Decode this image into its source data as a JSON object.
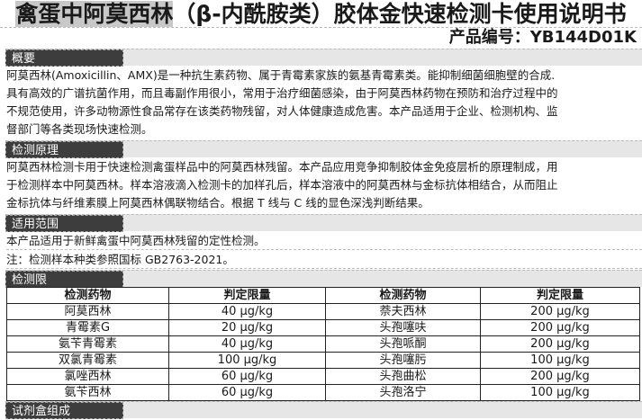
{
  "title": {
    "highlight": "禽蛋中阿莫西林",
    "rest": "（β-内酰胺类）胶体金快速检测卡使用说明书"
  },
  "product_code": "产品编号：YB144D01K",
  "sections": {
    "overview": {
      "heading": "概要",
      "lines": [
        "阿莫西林(Amoxicillin、AMX)是一种抗生素药物、属于青霉素家族的氨基青霉素类。能抑制细菌细胞壁的合成.",
        "具有高效的广谱抗菌作用，而且毒副作用很小，常用于治疗细菌感染，由于阿莫西林药物在预防和治疗过程中的",
        "不规范使用，许多动物源性食品常存在该类药物残留，对人体健康造成危害。本产品适用于企业、检测机构、监",
        "督部门等各类现场快速检测。"
      ]
    },
    "principle": {
      "heading": "检测原理",
      "lines": [
        "阿莫西林检测卡用于快速检测禽蛋样品中的阿莫西林残留。本产品应用竞争抑制胶体金免疫层析的原理制成，用",
        "于检测样本中阿莫西林。样本溶液滴入检测卡的加样孔后，样本溶液中的阿莫西林与金标抗体相结合，从而阻止",
        "金标抗体与纤维素膜上阿莫西林偶联物结合。根据 T 线与 C 线的显色深浅判断结果。"
      ]
    },
    "scope": {
      "heading": "适用范围",
      "lines": [
        "本产品适用于新鲜禽蛋中阿莫西林残留的定性检测。",
        "注：检测样本种类参照国标 GB2763-2021。"
      ]
    },
    "limits": {
      "heading": "检测限",
      "headers": [
        "检测药物",
        "判定限量",
        "检测药物",
        "判定限量"
      ],
      "rows": [
        [
          "阿莫西林",
          "40 μg/kg",
          "萘夫西林",
          "200 μg/kg"
        ],
        [
          "青霉素G",
          "20 μg/kg",
          "头孢噻呋",
          "200 μg/kg"
        ],
        [
          "氨苄青霉素",
          "40 μg/kg",
          "头孢哌酮",
          "200 μg/kg"
        ],
        [
          "双氯青霉素",
          "100 μg/kg",
          "头孢噻肟",
          "100 μg/kg"
        ],
        [
          "氯唑西林",
          "60 μg/kg",
          "头孢曲松",
          "200 μg/kg"
        ],
        [
          "氨苄西林",
          "60 μg/kg",
          "头孢洛宁",
          "100 μg/kg"
        ]
      ]
    },
    "kit": {
      "heading": "试剂盒组成"
    }
  }
}
